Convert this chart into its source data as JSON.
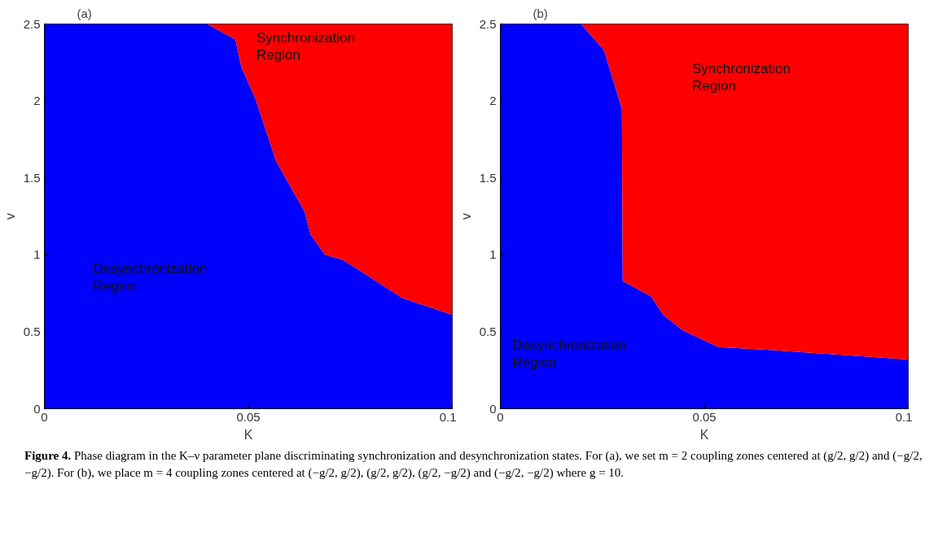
{
  "chart_data": [
    {
      "type": "area",
      "title": "(a)",
      "xlabel": "K",
      "ylabel": "v",
      "stacked": true,
      "x": [
        0,
        0.0399,
        0.0468,
        0.0483,
        0.0518,
        0.0568,
        0.0638,
        0.0653,
        0.0688,
        0.073,
        0.0784,
        0.0877,
        0.1
      ],
      "series": [
        {
          "name": "Desynchronization Region",
          "color": "#0000ff",
          "values": [
            2.5,
            2.5,
            2.4,
            2.22,
            2.01,
            1.61,
            1.28,
            1.13,
            1.0,
            0.97,
            0.88,
            0.72,
            0.61
          ]
        },
        {
          "name": "Synchronization Region",
          "color": "#ff0000",
          "values": [
            0,
            0,
            0.1,
            0.28,
            0.49,
            0.89,
            1.22,
            1.37,
            1.5,
            1.53,
            1.62,
            1.78,
            1.89
          ]
        }
      ],
      "xlim": [
        0,
        0.1
      ],
      "ylim": [
        0,
        2.5
      ],
      "xticks": [
        0,
        0.05,
        0.1
      ],
      "yticks": [
        0,
        0.5,
        1,
        1.5,
        2,
        2.5
      ]
    },
    {
      "type": "area",
      "title": "(b)",
      "xlabel": "K",
      "ylabel": "v",
      "stacked": true,
      "x": [
        0,
        0.0198,
        0.0254,
        0.0298,
        0.03,
        0.037,
        0.0399,
        0.0447,
        0.0535,
        0.067,
        0.1
      ],
      "series": [
        {
          "name": "Desynchronization Region",
          "color": "#0000ff",
          "values": [
            2.5,
            2.5,
            2.33,
            1.95,
            0.83,
            0.73,
            0.61,
            0.51,
            0.4,
            0.38,
            0.32
          ]
        },
        {
          "name": "Synchronization Region",
          "color": "#ff0000",
          "values": [
            0,
            0,
            0.17,
            0.55,
            1.67,
            1.77,
            1.89,
            1.99,
            2.1,
            2.12,
            2.18
          ]
        }
      ],
      "xlim": [
        0,
        0.1
      ],
      "ylim": [
        0,
        2.5
      ],
      "xticks": [
        0,
        0.05,
        0.1
      ],
      "yticks": [
        0,
        0.5,
        1,
        1.5,
        2,
        2.5
      ],
      "annotations": [
        "Figure 4. Phase diagram in the K–ν parameter plane discriminating synchronization and desynchronization states. For (a), we set m = 2 coupling zones centered at (g/2, g/2) and (−g/2, −g/2). For (b), we place m = 4 coupling zones centered at (−g/2, g/2), (g/2, g/2), (g/2, −g/2) and (−g/2, −g/2) where g = 10."
      ]
    }
  ]
}
